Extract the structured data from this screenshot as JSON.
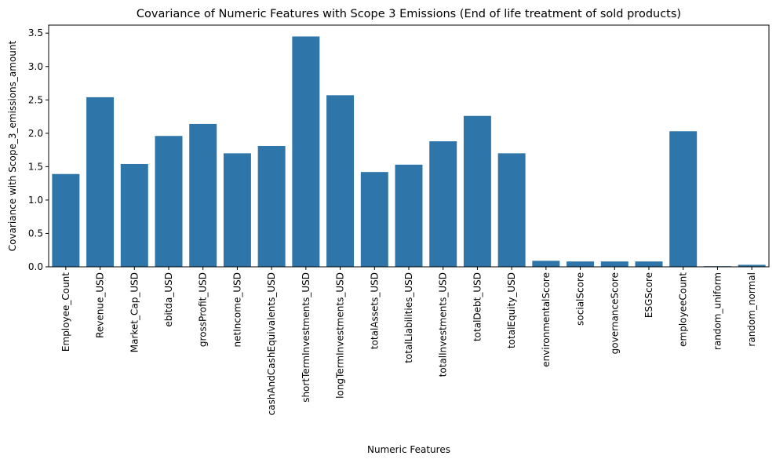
{
  "chart_data": {
    "type": "bar",
    "title": "Covariance of Numeric Features with Scope 3 Emissions (End of life treatment of sold products)",
    "xlabel": "Numeric Features",
    "ylabel": "Covariance with Scope_3_emissions_amount",
    "ylim": [
      0,
      3.62
    ],
    "yticks": [
      "0.0",
      "0.5",
      "1.0",
      "1.5",
      "2.0",
      "2.5",
      "3.0",
      "3.5"
    ],
    "grid": false,
    "bar_color": "#2e76aa",
    "categories": [
      "Employee_Count",
      "Revenue_USD",
      "Market_Cap_USD",
      "ebitda_USD",
      "grossProfit_USD",
      "netIncome_USD",
      "cashAndCashEquivalents_USD",
      "shortTermInvestments_USD",
      "longTermInvestments_USD",
      "totalAssets_USD",
      "totalLiabilities_USD",
      "totalInvestments_USD",
      "totalDebt_USD",
      "totalEquity_USD",
      "environmentalScore",
      "socialScore",
      "governanceScore",
      "ESGScore",
      "employeeCount",
      "random_uniform",
      "random_normal"
    ],
    "values": [
      1.39,
      2.54,
      1.54,
      1.96,
      2.14,
      1.7,
      1.81,
      3.45,
      2.57,
      1.42,
      1.53,
      1.88,
      2.26,
      1.7,
      0.09,
      0.08,
      0.08,
      0.08,
      2.03,
      0.01,
      0.03
    ]
  }
}
